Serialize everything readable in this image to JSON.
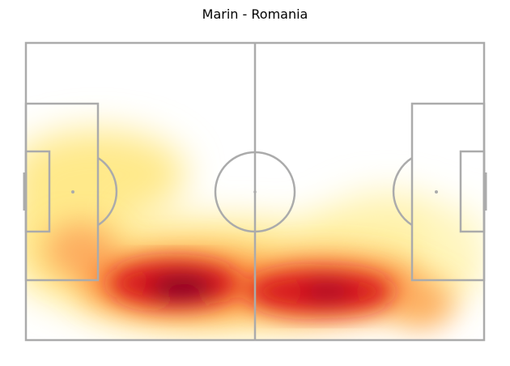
{
  "title": "Marin - Romania",
  "colors": {
    "line": "#ababab",
    "background": "#ffffff",
    "heat_low": "#ffffcc",
    "heat_mid": "#fd8d3c",
    "heat_high": "#800026"
  }
}
